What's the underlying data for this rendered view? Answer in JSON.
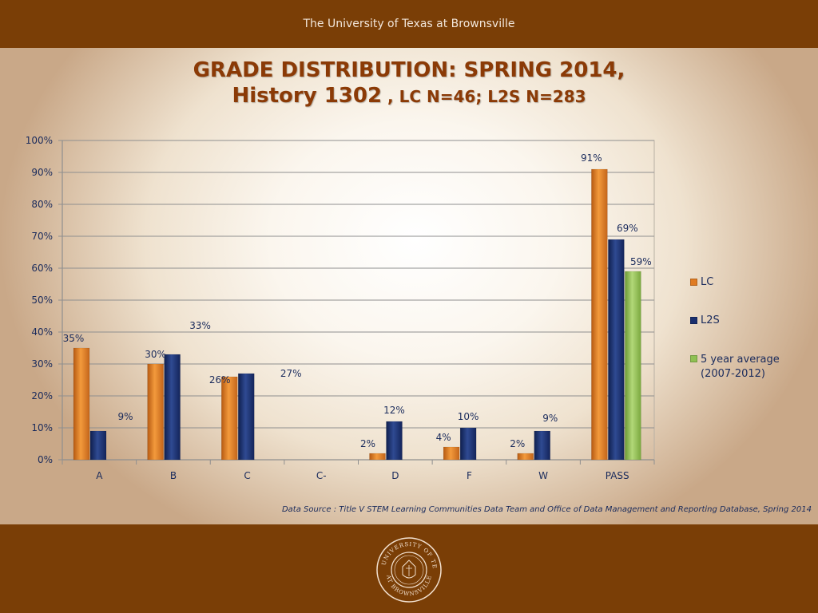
{
  "header": {
    "institution": "The University of Texas at Brownsville"
  },
  "title": {
    "line1": "GRADE DISTRIBUTION: SPRING 2014,",
    "line2_main": "History 1302",
    "line2_sub": " , LC N=46; L2S N=283"
  },
  "source": "Data Source : Title V STEM Learning Communities Data Team and  Office of Data Management and Reporting Database, Spring 2014",
  "seal": {
    "icon": "university-seal-icon",
    "top_text": "THE UNIVERSITY OF TEXAS",
    "bottom_text": "AT BROWNSVILLE"
  },
  "colors": {
    "LC": "#e07b22",
    "L2S": "#1a2f6e",
    "avg": "#8fc052",
    "bar_brown": "#7a3e06"
  },
  "chart_data": {
    "type": "bar",
    "categories": [
      "A",
      "B",
      "C",
      "C-",
      "D",
      "F",
      "W",
      "PASS"
    ],
    "series": [
      {
        "name": "LC",
        "values": [
          35,
          30,
          26,
          null,
          2,
          4,
          2,
          91
        ],
        "labels": [
          "35%",
          "30%",
          "26%",
          "",
          "2%",
          "4%",
          "2%",
          "91%"
        ]
      },
      {
        "name": "L2S",
        "values": [
          9,
          33,
          27,
          null,
          12,
          10,
          9,
          69
        ],
        "labels": [
          "9%",
          "33%",
          "27%",
          "",
          "12%",
          "10%",
          "9%",
          "69%"
        ]
      },
      {
        "name": " 5 year average (2007-2012)",
        "values": [
          null,
          null,
          null,
          null,
          null,
          null,
          null,
          59
        ],
        "labels": [
          "",
          "",
          "",
          "",
          "",
          "",
          "",
          "59%"
        ]
      }
    ],
    "legend": [
      {
        "name": "LC"
      },
      {
        "name": "L2S"
      },
      {
        "name": " 5 year average",
        "name_line2": "(2007-2012)"
      }
    ],
    "ylim": [
      0,
      100
    ],
    "yticks": [
      "0%",
      "10%",
      "20%",
      "30%",
      "40%",
      "50%",
      "60%",
      "70%",
      "80%",
      "90%",
      "100%"
    ],
    "legend_position": "right",
    "grid": true
  }
}
